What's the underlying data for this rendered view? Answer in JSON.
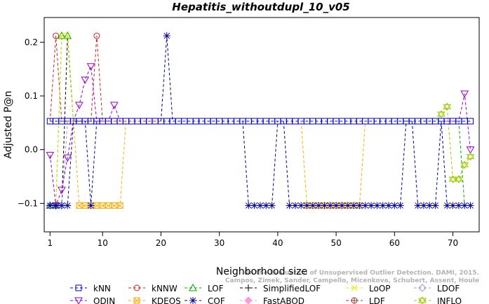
{
  "chart_data": {
    "type": "line",
    "title": "Hepatitis_withoutdupl_10_v05",
    "xlabel": "Neighborhood size",
    "ylabel": "Adjusted P@n",
    "xlim": [
      0,
      74.5
    ],
    "ylim": [
      -0.153,
      0.246
    ],
    "xticks": [
      1,
      10,
      20,
      30,
      40,
      50,
      60,
      70
    ],
    "yticks": [
      -0.1,
      0.0,
      0.1,
      0.2
    ],
    "ytick_labels": [
      "−0.1",
      "0.0",
      "0.1",
      "0.2"
    ],
    "grid": false,
    "legend_position": "bottom",
    "watermark": "Campos, Zimek, Sander, Campello, Micenkova, Schubert, Assent, Houle. On the Evaluation of Unsupervised Outlier Detection. DAMI, 2015.",
    "series": [
      {
        "name": "kNN",
        "color": "#0000cc",
        "marker": "square",
        "segments": [
          {
            "x": [
              1,
              73
            ],
            "y": [
              0.053,
              0.053
            ]
          }
        ],
        "points": {
          "x": [
            1,
            2,
            3,
            4,
            5,
            6,
            7,
            8,
            9,
            10,
            11,
            12,
            13,
            14,
            15,
            16,
            17,
            18,
            19,
            20,
            21,
            22,
            23,
            24,
            25,
            26,
            27,
            28,
            29,
            30,
            31,
            32,
            33,
            34,
            35,
            36,
            37,
            38,
            39,
            40,
            41,
            42,
            43,
            44,
            45,
            46,
            47,
            48,
            49,
            50,
            51,
            52,
            53,
            54,
            55,
            56,
            57,
            58,
            59,
            60,
            61,
            62,
            63,
            64,
            65,
            66,
            67,
            68,
            69,
            70,
            71,
            72,
            73
          ],
          "y": 0.053
        }
      },
      {
        "name": "kNNW",
        "color": "#cc2222",
        "marker": "circle",
        "segments": [
          {
            "x": [
              1,
              2,
              3,
              4,
              5,
              6,
              7,
              8,
              9,
              10,
              11,
              12,
              13,
              14,
              15,
              16,
              17,
              18,
              19,
              20
            ],
            "y": [
              0.053,
              0.212,
              0.053,
              0.053,
              0.053,
              0.053,
              0.053,
              0.053,
              0.212,
              0.053,
              0.053,
              0.053,
              0.053,
              0.053,
              0.053,
              0.053,
              0.053,
              0.053,
              0.053,
              0.053
            ]
          }
        ],
        "points": {
          "x": [
            2,
            9
          ],
          "y": 0.212
        }
      },
      {
        "name": "LOF",
        "color": "#00aa00",
        "marker": "triangle-up",
        "segments": [
          {
            "x": [
              1,
              2,
              3,
              4,
              5,
              6
            ],
            "y": [
              -0.104,
              -0.104,
              0.212,
              0.212,
              0.053,
              0.053
            ]
          },
          {
            "x": [
              71,
              72,
              73
            ],
            "y": [
              0.053,
              -0.104,
              -0.104
            ]
          }
        ],
        "points": {
          "x": [
            1,
            2,
            3,
            4
          ],
          "y": [
            -0.104,
            -0.104,
            0.212,
            0.212
          ]
        }
      },
      {
        "name": "SimplifiedLOF",
        "color": "#000000",
        "marker": "plus",
        "segments": [
          {
            "x": [
              1,
              2,
              3,
              4,
              5,
              6
            ],
            "y": [
              -0.104,
              -0.104,
              -0.104,
              0.212,
              0.053,
              0.053
            ]
          }
        ],
        "points": {
          "x": [
            1,
            2,
            3
          ],
          "y": -0.104
        }
      },
      {
        "name": "LoOP",
        "color": "#e6e600",
        "marker": "x",
        "segments": [
          {
            "x": [
              1,
              2,
              3,
              4,
              5
            ],
            "y": [
              -0.104,
              -0.104,
              0.212,
              0.212,
              0.053
            ]
          }
        ],
        "points": {
          "x": [
            2,
            3,
            4
          ],
          "y": [
            -0.104,
            0.212,
            0.212
          ]
        }
      },
      {
        "name": "LDOF",
        "color": "#9999cc",
        "marker": "diamond",
        "segments": [
          {
            "x": [
              1,
              2,
              3,
              4,
              5,
              6
            ],
            "y": [
              -0.104,
              -0.104,
              -0.104,
              0.053,
              0.053,
              0.053
            ]
          }
        ],
        "points": {
          "x": [
            1,
            2,
            3
          ],
          "y": -0.104
        }
      },
      {
        "name": "ODIN",
        "color": "#9900cc",
        "marker": "triangle-down",
        "segments": [
          {
            "x": [
              1,
              2,
              3,
              4,
              5,
              6,
              7,
              8,
              9,
              10,
              11,
              12,
              13
            ],
            "y": [
              -0.01,
              -0.104,
              -0.075,
              -0.015,
              0.053,
              0.083,
              0.13,
              0.155,
              0.053,
              0.053,
              0.053,
              0.083,
              0.053
            ]
          },
          {
            "x": [
              68,
              69,
              70,
              71,
              72,
              73
            ],
            "y": [
              0.053,
              0.053,
              0.053,
              0.053,
              0.104,
              0.0
            ]
          }
        ],
        "points": {
          "x": [
            1,
            2,
            3,
            4,
            6,
            7,
            8,
            12,
            72,
            73
          ],
          "y": [
            -0.01,
            -0.104,
            -0.075,
            -0.015,
            0.083,
            0.13,
            0.155,
            0.083,
            0.104,
            0.0
          ]
        }
      },
      {
        "name": "KDEOS",
        "color": "#ffaa00",
        "marker": "square-x",
        "segments": [
          {
            "x": [
              5,
              6,
              7,
              8,
              9,
              10,
              11,
              12,
              13,
              14
            ],
            "y": [
              0.053,
              -0.104,
              -0.104,
              -0.104,
              -0.104,
              -0.104,
              -0.104,
              -0.104,
              -0.104,
              0.053
            ]
          },
          {
            "x": [
              44,
              45,
              46,
              47,
              48,
              49,
              50,
              51,
              52,
              53,
              54,
              55
            ],
            "y": [
              0.053,
              -0.104,
              -0.104,
              -0.104,
              -0.104,
              -0.104,
              -0.104,
              -0.104,
              -0.104,
              -0.104,
              -0.104,
              0.053
            ]
          }
        ],
        "points": {
          "x": [
            6,
            7,
            8,
            9,
            10,
            11,
            12,
            13,
            45,
            46,
            47,
            48,
            49,
            50,
            51,
            52,
            53,
            54
          ],
          "y": -0.104
        }
      },
      {
        "name": "COF",
        "color": "#000099",
        "marker": "asterisk",
        "segments": [
          {
            "x": [
              1,
              2,
              3,
              4,
              5,
              6,
              7,
              8,
              9
            ],
            "y": [
              -0.104,
              -0.104,
              -0.104,
              -0.104,
              0.053,
              0.053,
              0.053,
              -0.104,
              0.053
            ]
          },
          {
            "x": [
              20,
              21,
              22
            ],
            "y": [
              0.053,
              0.212,
              0.053
            ]
          },
          {
            "x": [
              34,
              35,
              36,
              37,
              38,
              39,
              40
            ],
            "y": [
              0.053,
              -0.104,
              -0.104,
              -0.104,
              -0.104,
              -0.104,
              0.053
            ]
          },
          {
            "x": [
              41,
              42,
              43,
              44,
              45,
              46,
              47,
              48,
              49,
              50,
              51,
              52,
              53,
              54,
              55,
              56,
              57,
              58,
              59,
              60,
              61,
              62,
              63
            ],
            "y": [
              0.053,
              -0.104,
              -0.104,
              -0.104,
              -0.104,
              -0.104,
              -0.104,
              -0.104,
              -0.104,
              -0.104,
              -0.104,
              -0.104,
              -0.104,
              -0.104,
              -0.104,
              -0.104,
              -0.104,
              -0.104,
              -0.104,
              -0.104,
              -0.104,
              0.053,
              0.053
            ]
          },
          {
            "x": [
              63,
              64,
              65,
              66,
              67,
              68
            ],
            "y": [
              0.053,
              -0.104,
              -0.104,
              -0.104,
              -0.104,
              0.053
            ]
          },
          {
            "x": [
              68,
              69,
              70,
              71,
              72,
              73
            ],
            "y": [
              0.053,
              -0.104,
              -0.104,
              -0.104,
              -0.104,
              -0.104
            ]
          }
        ],
        "points": {
          "x": [
            1,
            2,
            3,
            4,
            8,
            21,
            35,
            36,
            37,
            38,
            39,
            42,
            43,
            44,
            45,
            46,
            47,
            48,
            49,
            50,
            51,
            52,
            53,
            54,
            55,
            56,
            57,
            58,
            59,
            60,
            61,
            64,
            65,
            66,
            67,
            69,
            70,
            71,
            72,
            73
          ],
          "y": [
            -0.104,
            -0.104,
            -0.104,
            -0.104,
            -0.104,
            0.212,
            -0.104,
            -0.104,
            -0.104,
            -0.104,
            -0.104,
            -0.104,
            -0.104,
            -0.104,
            -0.104,
            -0.104,
            -0.104,
            -0.104,
            -0.104,
            -0.104,
            -0.104,
            -0.104,
            -0.104,
            -0.104,
            -0.104,
            -0.104,
            -0.104,
            -0.104,
            -0.104,
            -0.104,
            -0.104,
            -0.104,
            -0.104,
            -0.104,
            -0.104,
            -0.104,
            -0.104,
            -0.104,
            -0.104,
            -0.104
          ]
        }
      },
      {
        "name": "FastABOD",
        "color": "#ff99dd",
        "marker": "diamond-filled",
        "segments": [],
        "points": {
          "x": [],
          "y": []
        }
      },
      {
        "name": "LDF",
        "color": "#993333",
        "marker": "circle-plus",
        "segments": [],
        "points": {
          "x": [],
          "y": []
        }
      },
      {
        "name": "INFLO",
        "color": "#99cc00",
        "marker": "star-of-david",
        "segments": [
          {
            "x": [
              67,
              68,
              69,
              70,
              71,
              72,
              73
            ],
            "y": [
              0.053,
              0.066,
              0.08,
              -0.055,
              -0.055,
              -0.028,
              -0.013
            ]
          }
        ],
        "points": {
          "x": [
            68,
            69,
            70,
            71,
            72,
            73
          ],
          "y": [
            0.066,
            0.08,
            -0.055,
            -0.055,
            -0.028,
            -0.013
          ]
        }
      }
    ]
  }
}
